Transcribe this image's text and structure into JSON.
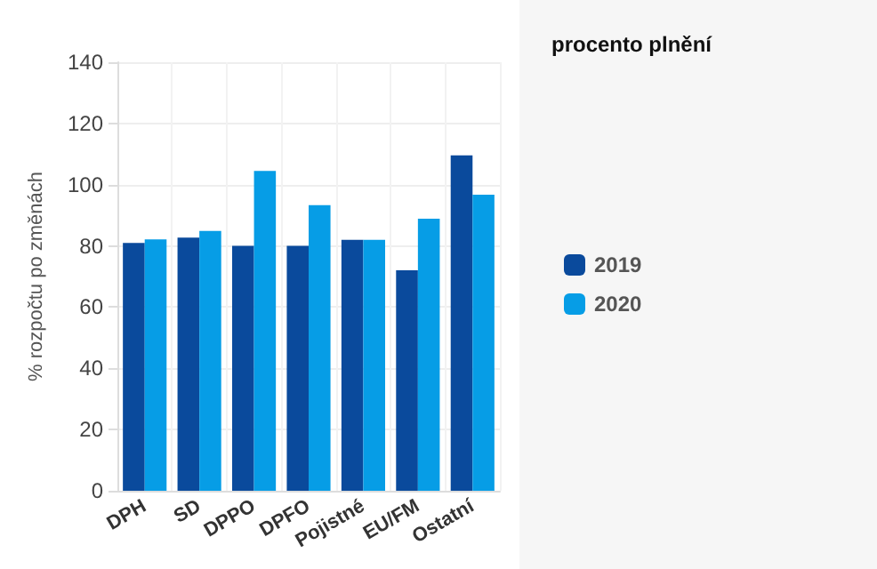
{
  "chart_data": {
    "type": "bar",
    "ylabel": "% rozpočtu po změnách",
    "legend_title": "procento plnění",
    "categories": [
      "DPH",
      "SD",
      "DPPO",
      "DPFO",
      "Pojistné",
      "EU/FM",
      "Ostatní"
    ],
    "series": [
      {
        "name": "2019",
        "color": "#0a4a9c",
        "values": [
          81,
          82.7,
          80,
          80,
          82,
          72,
          109.6
        ]
      },
      {
        "name": "2020",
        "color": "#069de6",
        "values": [
          82.1,
          84.9,
          104.5,
          93.3,
          82,
          88.9,
          96.7
        ]
      }
    ],
    "ylim": [
      0,
      140
    ],
    "yticks": [
      0,
      20,
      40,
      60,
      80,
      100,
      120,
      140
    ],
    "grid": true,
    "legend": "right"
  }
}
